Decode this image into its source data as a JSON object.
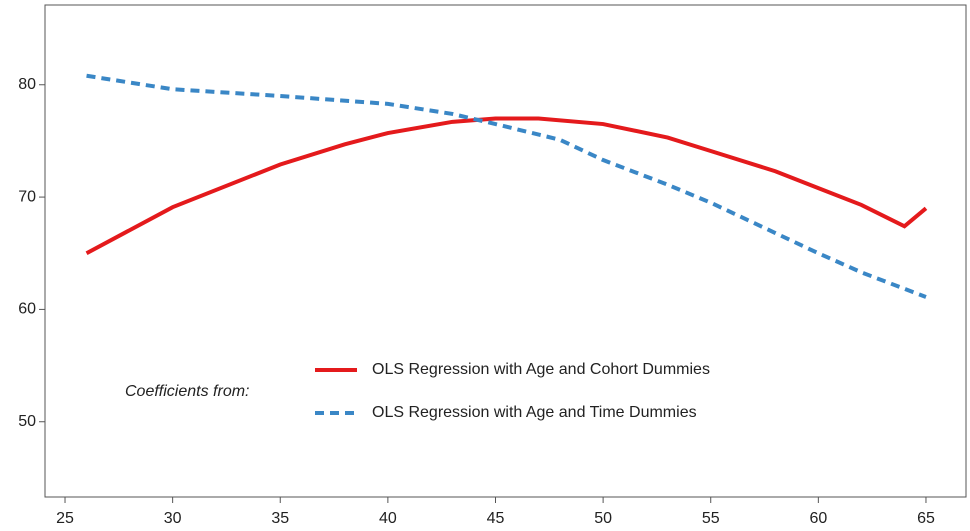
{
  "chart_data": {
    "type": "line",
    "series": [
      {
        "name": "OLS Regression with Age and Cohort Dummies",
        "color": "#e41a1c",
        "dash": "solid",
        "x": [
          26,
          30,
          35,
          38,
          40,
          43,
          45,
          47,
          50,
          53,
          55,
          58,
          60,
          62,
          64,
          65
        ],
        "values": [
          65.0,
          69.1,
          72.9,
          74.7,
          75.7,
          76.7,
          77.0,
          77.0,
          76.5,
          75.3,
          74.1,
          72.3,
          70.8,
          69.3,
          67.4,
          69.0
        ]
      },
      {
        "name": "OLS Regression with Age and Time Dummies",
        "color": "#3a87c6",
        "dash": "dashed",
        "x": [
          26,
          30,
          35,
          40,
          43,
          45,
          48,
          50,
          53,
          55,
          58,
          60,
          62,
          65
        ],
        "values": [
          80.8,
          79.6,
          79.0,
          78.3,
          77.4,
          76.5,
          75.1,
          73.3,
          71.1,
          69.5,
          66.8,
          65.0,
          63.3,
          61.1
        ]
      }
    ],
    "legend_title": "Coefficients from:",
    "xlim": [
      24.07,
      66.86
    ],
    "xticks": [
      25,
      30,
      35,
      40,
      45,
      50,
      55,
      60,
      65
    ],
    "ylim": [
      43.3,
      87.1
    ],
    "yticks": [
      50,
      60,
      70,
      80
    ]
  }
}
